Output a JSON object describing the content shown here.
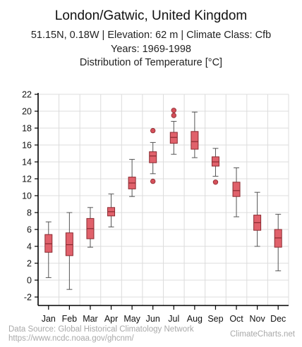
{
  "header": {
    "title": "London/Gatwic, United Kingdom",
    "subtitle": "51.15N, 0.18W | Elevation: 62 m | Climate Class: Cfb",
    "years": "Years: 1969-1998",
    "chart_title": "Distribution of Temperature [°C]"
  },
  "footer": {
    "source_line1": "Data Source: Global Historical Climatology Network",
    "source_line2": "https://www.ncdc.noaa.gov/ghcnm/",
    "brand": "ClimateCharts.net"
  },
  "colors": {
    "box_fill": "#e0616b",
    "box_stroke": "#8b2a30",
    "outlier_fill": "#d4505a",
    "grid": "#dcdcdc",
    "axis": "#000000"
  },
  "chart_data": {
    "type": "boxplot",
    "title": "Distribution of Temperature [°C]",
    "ylabel": "",
    "xlabel": "",
    "ylim": [
      -3,
      22
    ],
    "yticks": [
      -2,
      0,
      2,
      4,
      6,
      8,
      10,
      12,
      14,
      16,
      18,
      20,
      22
    ],
    "grid": true,
    "categories": [
      "Jan",
      "Feb",
      "Mar",
      "Apr",
      "May",
      "Jun",
      "Jul",
      "Aug",
      "Sep",
      "Oct",
      "Nov",
      "Dec"
    ],
    "boxes": [
      {
        "min": 0.3,
        "q1": 3.3,
        "median": 4.3,
        "q3": 5.4,
        "max": 6.9,
        "outliers": []
      },
      {
        "min": -1.1,
        "q1": 2.9,
        "median": 4.2,
        "q3": 5.6,
        "max": 8.0,
        "outliers": []
      },
      {
        "min": 3.9,
        "q1": 4.9,
        "median": 6.1,
        "q3": 7.3,
        "max": 8.6,
        "outliers": []
      },
      {
        "min": 6.3,
        "q1": 7.6,
        "median": 8.1,
        "q3": 8.6,
        "max": 10.2,
        "outliers": []
      },
      {
        "min": 9.9,
        "q1": 10.8,
        "median": 11.5,
        "q3": 12.2,
        "max": 14.3,
        "outliers": []
      },
      {
        "min": 12.6,
        "q1": 13.9,
        "median": 14.7,
        "q3": 15.2,
        "max": 16.3,
        "outliers": [
          17.7,
          11.7
        ]
      },
      {
        "min": 14.9,
        "q1": 16.2,
        "median": 16.9,
        "q3": 17.5,
        "max": 18.8,
        "outliers": [
          20.1,
          19.5
        ]
      },
      {
        "min": 14.5,
        "q1": 15.5,
        "median": 16.4,
        "q3": 17.6,
        "max": 19.9,
        "outliers": []
      },
      {
        "min": 12.3,
        "q1": 13.5,
        "median": 14.0,
        "q3": 14.6,
        "max": 15.6,
        "outliers": [
          11.6
        ]
      },
      {
        "min": 7.5,
        "q1": 9.9,
        "median": 10.6,
        "q3": 11.6,
        "max": 13.3,
        "outliers": []
      },
      {
        "min": 4.0,
        "q1": 5.9,
        "median": 6.8,
        "q3": 7.7,
        "max": 10.4,
        "outliers": []
      },
      {
        "min": 1.1,
        "q1": 3.9,
        "median": 5.0,
        "q3": 6.0,
        "max": 7.8,
        "outliers": []
      }
    ]
  }
}
